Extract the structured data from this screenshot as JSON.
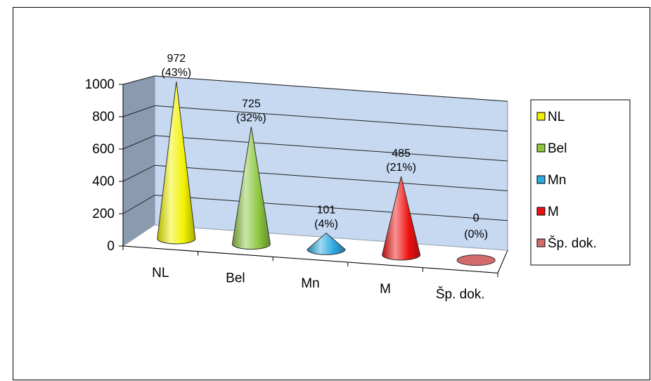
{
  "chart_data": {
    "type": "bar",
    "shape": "cone",
    "categories": [
      "NL",
      "Bel",
      "Mn",
      "M",
      "Šp. dok."
    ],
    "values": [
      972,
      725,
      101,
      485,
      0
    ],
    "data_labels": [
      [
        "972",
        "(43%)"
      ],
      [
        "725",
        "(32%)"
      ],
      [
        "101",
        "(4%)"
      ],
      [
        "485",
        "(21%)"
      ],
      [
        "0",
        "(0%)"
      ]
    ],
    "yticks": [
      "0",
      "200",
      "400",
      "600",
      "800",
      "1000"
    ],
    "ylim": [
      0,
      1000
    ],
    "grid": true,
    "legend_position": "right",
    "legend": [
      "NL",
      "Bel",
      "Mn",
      "M",
      "Šp. dok."
    ],
    "colors": [
      "#f2f200",
      "#8cc63f",
      "#2ca9e1",
      "#ee1111",
      "#d36b6b"
    ],
    "back_wall_color": "#c6d9f1",
    "side_wall_color": "#8a9bb0"
  }
}
